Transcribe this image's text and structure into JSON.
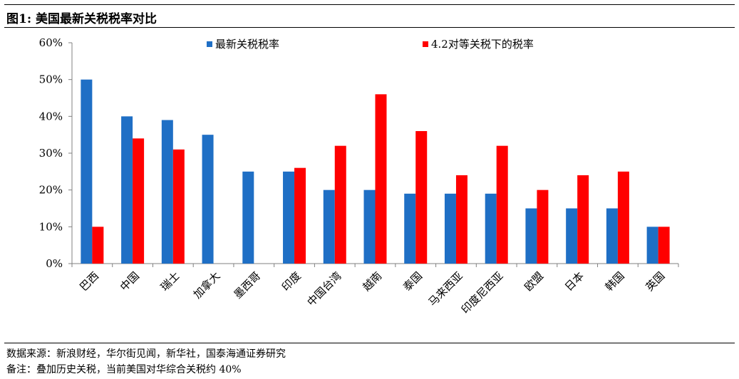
{
  "header": {
    "title": "图1:  美国最新关税税率对比"
  },
  "footer": {
    "source": "数据来源：新浪财经，华尔街见闻，新华社，国泰海通证券研究",
    "note": "备注：叠加历史关税，当前美国对华综合关税约 40%"
  },
  "colors": {
    "series_blue": "#1f6fc5",
    "series_red": "#ff0000",
    "axis": "#808080"
  },
  "chart_data": {
    "type": "bar",
    "categories": [
      "巴西",
      "中国",
      "瑞士",
      "加拿大",
      "墨西哥",
      "印度",
      "中国台湾",
      "越南",
      "泰国",
      "马来西亚",
      "印度尼西亚",
      "欧盟",
      "日本",
      "韩国",
      "英国"
    ],
    "series": [
      {
        "name": "最新关税税率",
        "color": "#1f6fc5",
        "values": [
          50,
          40,
          39,
          35,
          25,
          25,
          20,
          20,
          19,
          19,
          19,
          15,
          15,
          15,
          10
        ]
      },
      {
        "name": "4.2对等关税下的税率",
        "color": "#ff0000",
        "values": [
          10,
          34,
          31,
          null,
          null,
          26,
          32,
          46,
          36,
          24,
          32,
          20,
          24,
          25,
          10
        ]
      }
    ],
    "ylim": [
      0,
      60
    ],
    "yticks": [
      "0%",
      "10%",
      "20%",
      "30%",
      "40%",
      "50%",
      "60%"
    ],
    "grid": false,
    "legend": "top"
  }
}
